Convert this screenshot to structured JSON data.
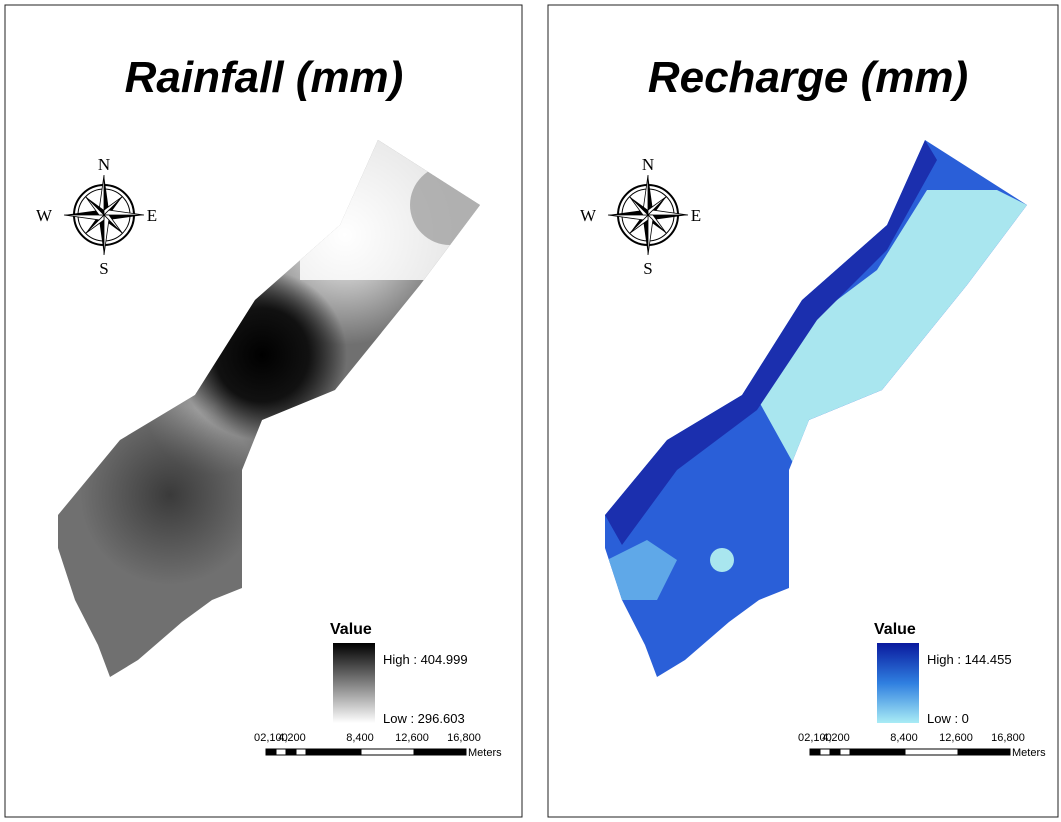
{
  "panels": [
    {
      "title": "Rainfall (mm)",
      "compass": {
        "n": "N",
        "s": "S",
        "e": "E",
        "w": "W"
      },
      "legend": {
        "title": "Value",
        "high": "High : 404.999",
        "low": "Low : 296.603"
      },
      "scale": {
        "labels": [
          "0",
          "2,100",
          "4,200",
          "8,400",
          "12,600",
          "16,800"
        ],
        "unit": "Meters"
      }
    },
    {
      "title": "Recharge (mm)",
      "compass": {
        "n": "N",
        "s": "S",
        "e": "E",
        "w": "W"
      },
      "legend": {
        "title": "Value",
        "high": "High : 144.455",
        "low": "Low : 0"
      },
      "scale": {
        "labels": [
          "0",
          "2,100",
          "4,200",
          "8,400",
          "12,600",
          "16,800"
        ],
        "unit": "Meters"
      }
    }
  ]
}
